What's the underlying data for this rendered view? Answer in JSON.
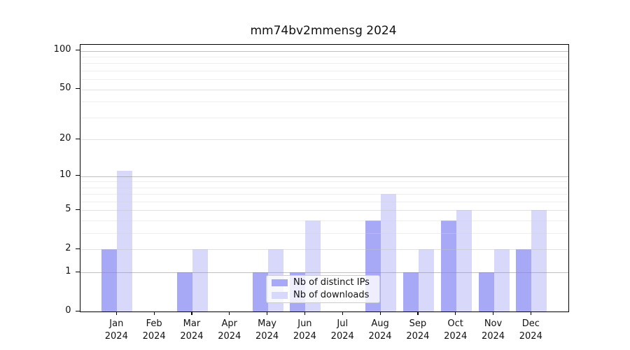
{
  "chart_data": {
    "type": "bar",
    "title": "mm74bv2mmensg 2024",
    "categories": [
      "Jan",
      "Feb",
      "Mar",
      "Apr",
      "May",
      "Jun",
      "Jul",
      "Aug",
      "Sep",
      "Oct",
      "Nov",
      "Dec"
    ],
    "category_year": "2024",
    "series": [
      {
        "name": "Nb of distinct IPs",
        "color": "#a8a9f6",
        "values": [
          2,
          0,
          1,
          0,
          1,
          1,
          0,
          4,
          1,
          4,
          1,
          2
        ]
      },
      {
        "name": "Nb of downloads",
        "color": "#d8d9fa",
        "values": [
          11,
          0,
          2,
          0,
          2,
          4,
          0,
          7,
          2,
          5,
          2,
          5
        ]
      }
    ],
    "xlabel": "",
    "ylabel": "",
    "y_axis": {
      "scale": "log10(value+1)",
      "tick_values": [
        0,
        1,
        2,
        5,
        10,
        20,
        50,
        100
      ],
      "tick_labels": [
        "0",
        "1",
        "2",
        "5",
        "10",
        "20",
        "50",
        "100"
      ],
      "major_grid_values": [
        1,
        10,
        100
      ],
      "mid_grid_values": [
        2,
        5,
        20,
        50
      ],
      "minor_grid_values": [
        3,
        4,
        6,
        7,
        8,
        9,
        30,
        40,
        60,
        70,
        80,
        90
      ],
      "axis_max_value": 112,
      "axis_min_value": 0
    },
    "legend": {
      "position": "lower-center",
      "entries": [
        "Nb of distinct IPs",
        "Nb of downloads"
      ]
    },
    "grid": true
  }
}
